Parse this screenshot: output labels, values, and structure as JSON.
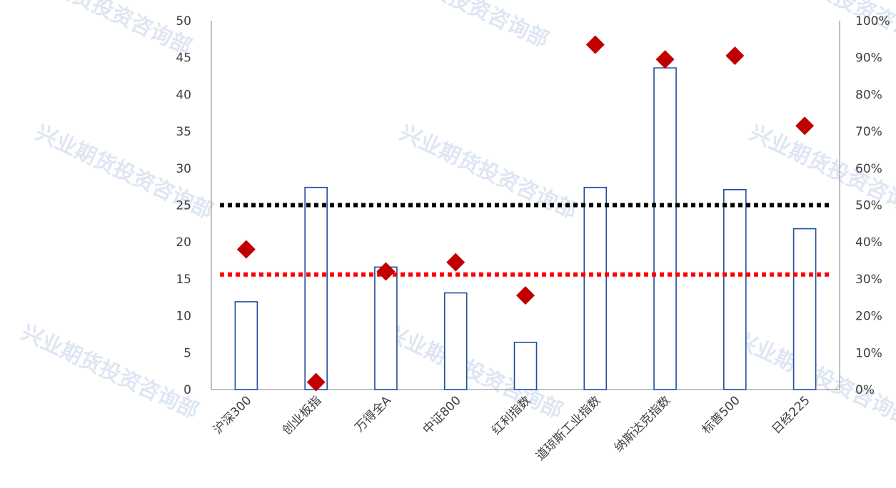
{
  "chart_data": {
    "type": "bar",
    "categories": [
      "沪深300",
      "创业板指",
      "万得全A",
      "中证800",
      "红利指数",
      "道琼斯工业指数",
      "纳斯达克指数",
      "标普500",
      "日经225"
    ],
    "series": [
      {
        "values": [
          11.9,
          27.4,
          16.6,
          13.1,
          6.4,
          27.4,
          43.6,
          27.1,
          21.8
        ]
      },
      {
        "type": "scatter",
        "axis": "right",
        "values": [
          0.38,
          0.02,
          0.32,
          0.345,
          0.255,
          0.935,
          0.895,
          0.905,
          0.715
        ]
      }
    ],
    "reference_lines": [
      {
        "axis": "left",
        "value": 25,
        "color": "#000000",
        "style": "dotted"
      },
      {
        "axis": "left",
        "value": 15.6,
        "color": "#ff0000",
        "style": "dotted"
      }
    ],
    "ylim": [
      0,
      50
    ],
    "yticks": [
      "0",
      "5",
      "10",
      "15",
      "20",
      "25",
      "30",
      "35",
      "40",
      "45",
      "50"
    ],
    "y2lim": [
      0,
      1
    ],
    "y2ticks": [
      "0%",
      "10%",
      "20%",
      "30%",
      "40%",
      "50%",
      "60%",
      "70%",
      "80%",
      "90%",
      "100%"
    ],
    "colors": {
      "bar_stroke": "#1f4e9a",
      "bar_fill": "#ffffff",
      "marker": "#c00000",
      "axis": "#808080"
    },
    "grid": false
  },
  "watermark": {
    "text": "兴业期货投资咨询部"
  }
}
